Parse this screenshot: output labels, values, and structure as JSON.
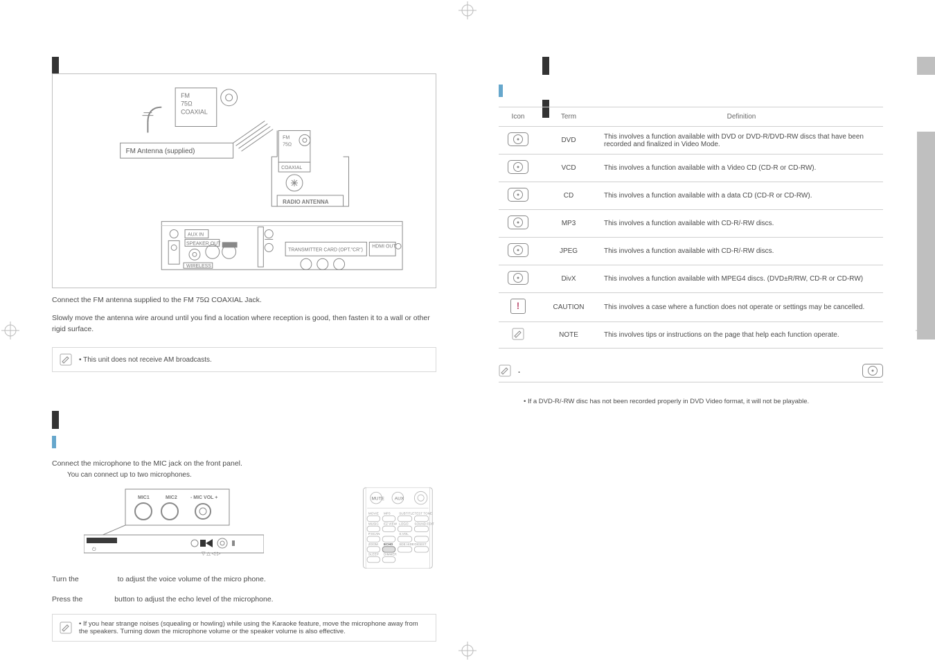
{
  "colors": {
    "text": "#4a4a4a",
    "border": "#cfcfcf",
    "accent_bar": "#66a7cc",
    "figure_border": "#bfbfbf",
    "grey_band": "#bfbfbf",
    "caution_mark": "#c05a7a"
  },
  "left": {
    "figure": {
      "fm_label": "FM\n75Ω\nCOAXIAL",
      "antenna_supplied": "FM Antenna (supplied)",
      "port_fm": "FM\n75Ω",
      "port_coax": "COAXIAL",
      "radio_antenna": "RADIO ANTENNA",
      "aux_in": "AUX IN",
      "speaker_out": "SPEAKER OUT",
      "wireless": "WIRELESS",
      "tx_card_label": "TRANSMITTER CARD (OPT. \"CR\")",
      "hdmi_out": "HDMI OUT"
    },
    "step1": "Connect the FM antenna supplied to the FM 75Ω COAXIAL Jack.",
    "step2": "Slowly move the antenna wire around until you find a location where reception is good, then fasten it to a wall or other rigid surface.",
    "note1": "• This unit does not receive AM broadcasts.",
    "mic": {
      "step1": "Connect the microphone to the MIC jack on the front panel.",
      "sub1": "You can connect up to two microphones.",
      "step2_a": "Turn the ",
      "step2_b": " to adjust the voice volume of the micro phone.",
      "step3_a": "Press the ",
      "step3_b": " button to adjust the echo level of the microphone.",
      "note": "• If you hear strange noises (squealing or howling) while using the Karaoke feature, move the microphone away from the speakers. Turning down the microphone volume or the speaker volume is also effective.",
      "front_labels": {
        "mic1": "MIC1",
        "mic2": "MIC2",
        "micvol": "- MIC VOL +"
      },
      "remote_labels": [
        "MUTE",
        "MOVIE",
        "MUSIC",
        "P.SCAN",
        "ZOOM",
        "SLEEP",
        "MP3",
        "EZ VIEW",
        "",
        "ECHO",
        "DIMMER",
        "SUBTITLE",
        "LOGO",
        "S.VOL",
        "SDE HIDE",
        "TEST TONE",
        "SOUND EDIT",
        "DIGEST"
      ]
    }
  },
  "right": {
    "table_headers": {
      "icon": "Icon",
      "term": "Term",
      "definition": "Definition"
    },
    "rows": [
      {
        "icon": "disc",
        "term": "DVD",
        "def": "This involves a function available with DVD or DVD-R/DVD-RW discs that have been recorded and finalized in Video Mode."
      },
      {
        "icon": "disc",
        "term": "VCD",
        "def": "This involves a function available with a Video CD (CD-R or CD-RW)."
      },
      {
        "icon": "disc",
        "term": "CD",
        "def": "This involves a function available with a data CD (CD-R or CD-RW)."
      },
      {
        "icon": "disc",
        "term": "MP3",
        "def": "This involves a function available with CD-R/-RW discs."
      },
      {
        "icon": "disc",
        "term": "JPEG",
        "def": "This involves a function available with CD-R/-RW discs."
      },
      {
        "icon": "disc",
        "term": "DivX",
        "def": "This involves a function available with MPEG4 discs. (DVD±R/RW, CD-R or CD-RW)"
      },
      {
        "icon": "caution",
        "term": "CAUTION",
        "def": "This involves a case where a function does not operate or settings may be cancelled."
      },
      {
        "icon": "note",
        "term": "NOTE",
        "def": "This involves tips or instructions on the page that help each function operate."
      }
    ],
    "callout_period": ".",
    "footnote": "• If a DVD-R/-RW disc has not been recorded properly in DVD Video format, it will not be playable."
  }
}
